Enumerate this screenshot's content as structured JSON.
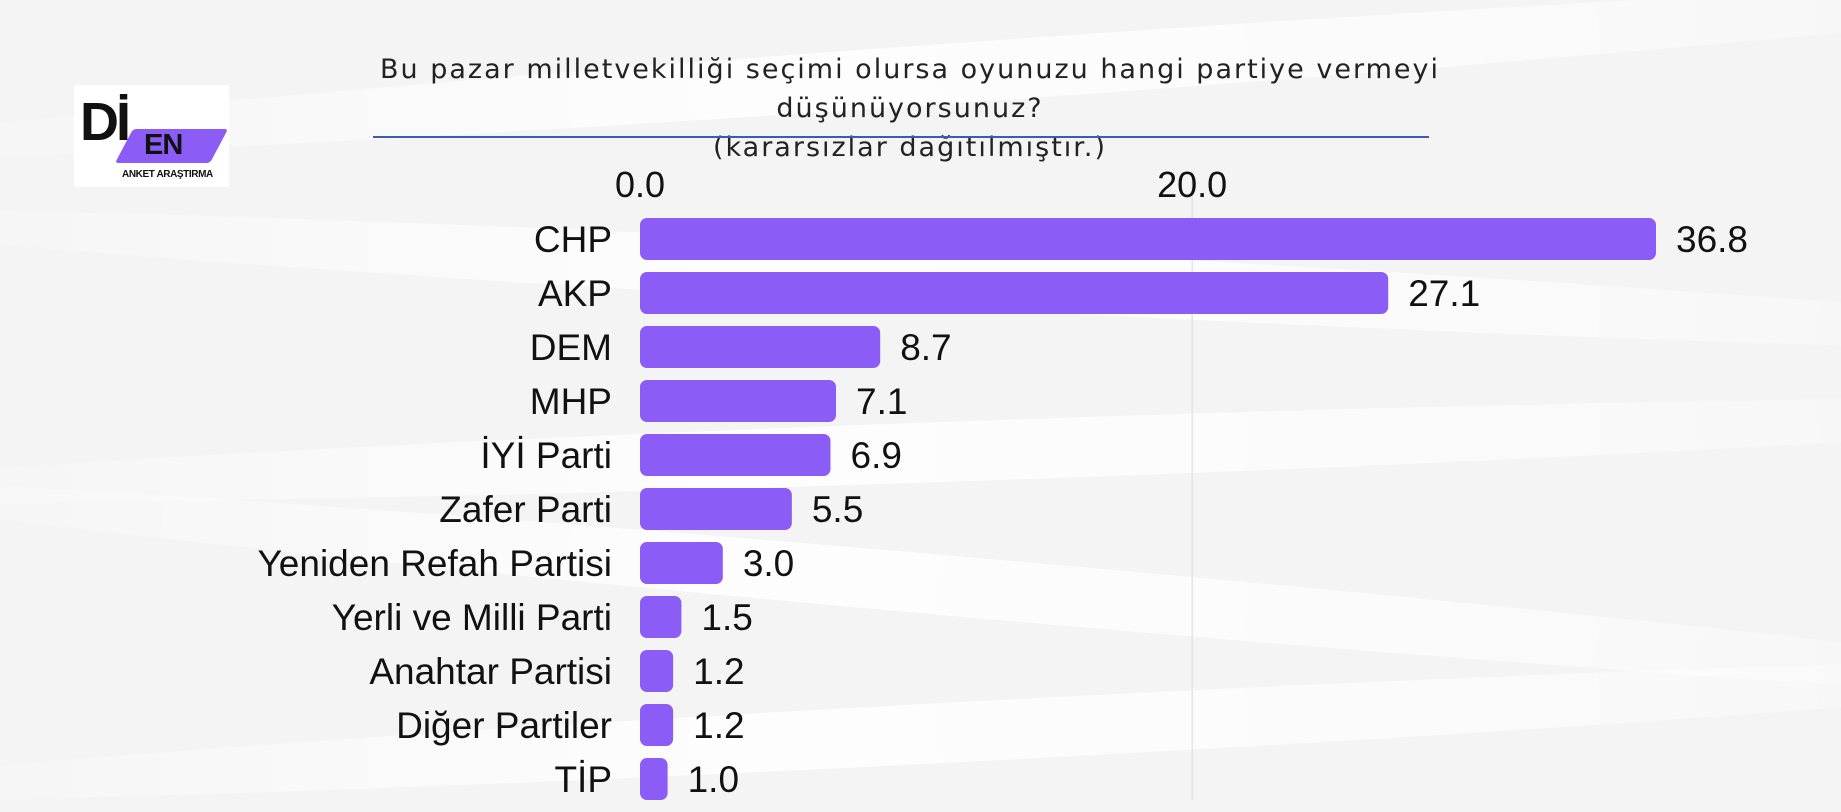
{
  "logo": {
    "main": "Dİ",
    "badge": "EN",
    "tagline": "ANKET ARAŞTIRMA",
    "accent": "#8b5cf6"
  },
  "chart_data": {
    "type": "bar",
    "orientation": "horizontal",
    "title": "Bu pazar milletvekilliği seçimi olursa oyunuzu hangi partiye vermeyi düşünüyorsunuz?",
    "subtitle": "(kararsızlar dağıtılmıştır.)",
    "categories": [
      "CHP",
      "AKP",
      "DEM",
      "MHP",
      "İYİ Parti",
      "Zafer Parti",
      "Yeniden Refah Partisi",
      "Yerli ve Milli Parti",
      "Anahtar Partisi",
      "Diğer Partiler",
      "TİP"
    ],
    "values": [
      36.8,
      27.1,
      8.7,
      7.1,
      6.9,
      5.5,
      3.0,
      1.5,
      1.2,
      1.2,
      1.0
    ],
    "value_labels": [
      "36.8",
      "27.1",
      "8.7",
      "7.1",
      "6.9",
      "5.5",
      "3.0",
      "1.5",
      "1.2",
      "1.2",
      "1.0"
    ],
    "x_ticks": [
      0,
      20
    ],
    "x_tick_labels": [
      "0.0",
      "20.0"
    ],
    "xlim": [
      0,
      36.8
    ],
    "x_axis_position": "top",
    "bar_color": "#8b5cf6",
    "grid": true
  }
}
